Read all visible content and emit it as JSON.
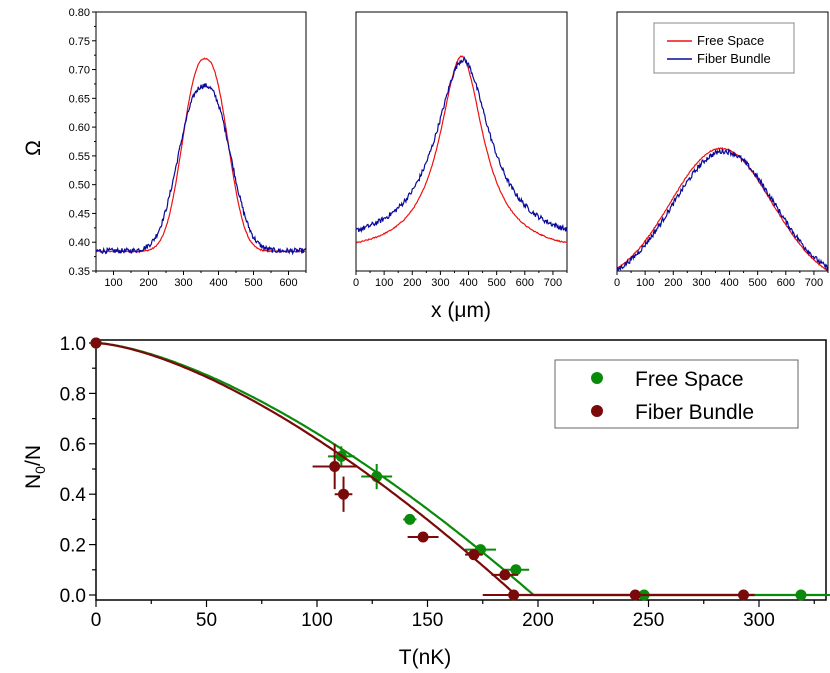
{
  "chart_data": [
    {
      "type": "line",
      "panel": 1,
      "xlim": [
        50,
        650
      ],
      "ylim": [
        0.35,
        0.8
      ],
      "xticks": [
        "100",
        "200",
        "300",
        "400",
        "500",
        "600"
      ],
      "yticks": [
        "0.35",
        "0.40",
        "0.45",
        "0.50",
        "0.55",
        "0.60",
        "0.65",
        "0.70",
        "0.75",
        "0.80"
      ],
      "ylabel": "Ω",
      "series": [
        {
          "name": "Free Space",
          "color": "#ee1111",
          "baseline": 0.384,
          "peak": 0.719,
          "center": 362,
          "width": 62,
          "shape": "gauss"
        },
        {
          "name": "Fiber Bundle",
          "color": "#0a0a9a",
          "baseline": 0.385,
          "peak": 0.672,
          "center": 360,
          "width": 72,
          "shape": "gauss"
        }
      ]
    },
    {
      "type": "line",
      "panel": 2,
      "xlim": [
        0,
        750
      ],
      "ylim": [
        0.35,
        0.8
      ],
      "xticks": [
        "0",
        "100",
        "200",
        "300",
        "400",
        "500",
        "600",
        "700"
      ],
      "xlabel": "x (μm)",
      "series": [
        {
          "name": "Free Space",
          "color": "#ee1111",
          "baseline": 0.378,
          "peak": 0.723,
          "center": 375,
          "width": 95,
          "shape": "lorentz"
        },
        {
          "name": "Fiber Bundle",
          "color": "#0a0a9a",
          "baseline": 0.392,
          "peak": 0.717,
          "center": 380,
          "width": 118,
          "shape": "lorentz"
        }
      ]
    },
    {
      "type": "line",
      "panel": 3,
      "xlim": [
        0,
        750
      ],
      "ylim": [
        0.35,
        0.8
      ],
      "xticks": [
        "0",
        "100",
        "200",
        "300",
        "400",
        "500",
        "600",
        "700"
      ],
      "series": [
        {
          "name": "Free Space",
          "color": "#ee1111",
          "baseline": 0.325,
          "peak": 0.563,
          "center": 370,
          "width": 180,
          "shape": "gauss"
        },
        {
          "name": "Fiber Bundle",
          "color": "#0a0a9a",
          "baseline": 0.327,
          "peak": 0.558,
          "center": 380,
          "width": 180,
          "shape": "gauss"
        }
      ],
      "legend": [
        "Free Space",
        "Fiber Bundle"
      ]
    },
    {
      "type": "scatter",
      "title": "",
      "xlabel": "T(nK)",
      "ylabel": "N0/N",
      "xlim": [
        0,
        330
      ],
      "ylim": [
        0.0,
        1.0
      ],
      "xticks": [
        "0",
        "50",
        "100",
        "150",
        "200",
        "250",
        "300"
      ],
      "yticks": [
        "0.0",
        "0.2",
        "0.4",
        "0.6",
        "0.8",
        "1.0"
      ],
      "legend": [
        "Free Space",
        "Fiber Bundle"
      ],
      "series": [
        {
          "name": "Free Space",
          "color": "#0a8a0a",
          "fit_Tc": 198,
          "fit_exponent": 1.5,
          "points": [
            {
              "x": 0,
              "y": 1.0,
              "xerr": 0,
              "yerr": 0
            },
            {
              "x": 111,
              "y": 0.55,
              "xerr": 6,
              "yerr": 0.04
            },
            {
              "x": 127,
              "y": 0.47,
              "xerr": 7,
              "yerr": 0.05
            },
            {
              "x": 142,
              "y": 0.3,
              "xerr": 3,
              "yerr": 0.02
            },
            {
              "x": 174,
              "y": 0.18,
              "xerr": 7,
              "yerr": 0.01
            },
            {
              "x": 190,
              "y": 0.1,
              "xerr": 6,
              "yerr": 0.01
            },
            {
              "x": 248,
              "y": 0.0,
              "xerr": 0,
              "yerr": 0
            },
            {
              "x": 319,
              "y": 0.0,
              "xerr": 14,
              "yerr": 0
            }
          ]
        },
        {
          "name": "Fiber Bundle",
          "color": "#7a0a0a",
          "fit_Tc": 190,
          "fit_exponent": 1.5,
          "points": [
            {
              "x": 0,
              "y": 1.0,
              "xerr": 0,
              "yerr": 0
            },
            {
              "x": 108,
              "y": 0.51,
              "xerr": 10,
              "yerr": 0.09
            },
            {
              "x": 112,
              "y": 0.4,
              "xerr": 4,
              "yerr": 0.07
            },
            {
              "x": 148,
              "y": 0.23,
              "xerr": 7,
              "yerr": 0
            },
            {
              "x": 171,
              "y": 0.16,
              "xerr": 4,
              "yerr": 0
            },
            {
              "x": 185,
              "y": 0.08,
              "xerr": 6,
              "yerr": 0
            },
            {
              "x": 189,
              "y": 0.0,
              "xerr": 14,
              "yerr": 0
            },
            {
              "x": 244,
              "y": 0.0,
              "xerr": 0,
              "yerr": 0
            },
            {
              "x": 293,
              "y": 0.0,
              "xerr": 0,
              "yerr": 0
            }
          ]
        }
      ]
    }
  ],
  "labels": {
    "omega": "Ω",
    "x_um": "x (μm)",
    "n0n_main": "N",
    "n0n_sub": "0",
    "n0n_tail": "/N",
    "tnk": "T(nK)",
    "legend_free": "Free Space",
    "legend_fiber": "Fiber Bundle"
  }
}
